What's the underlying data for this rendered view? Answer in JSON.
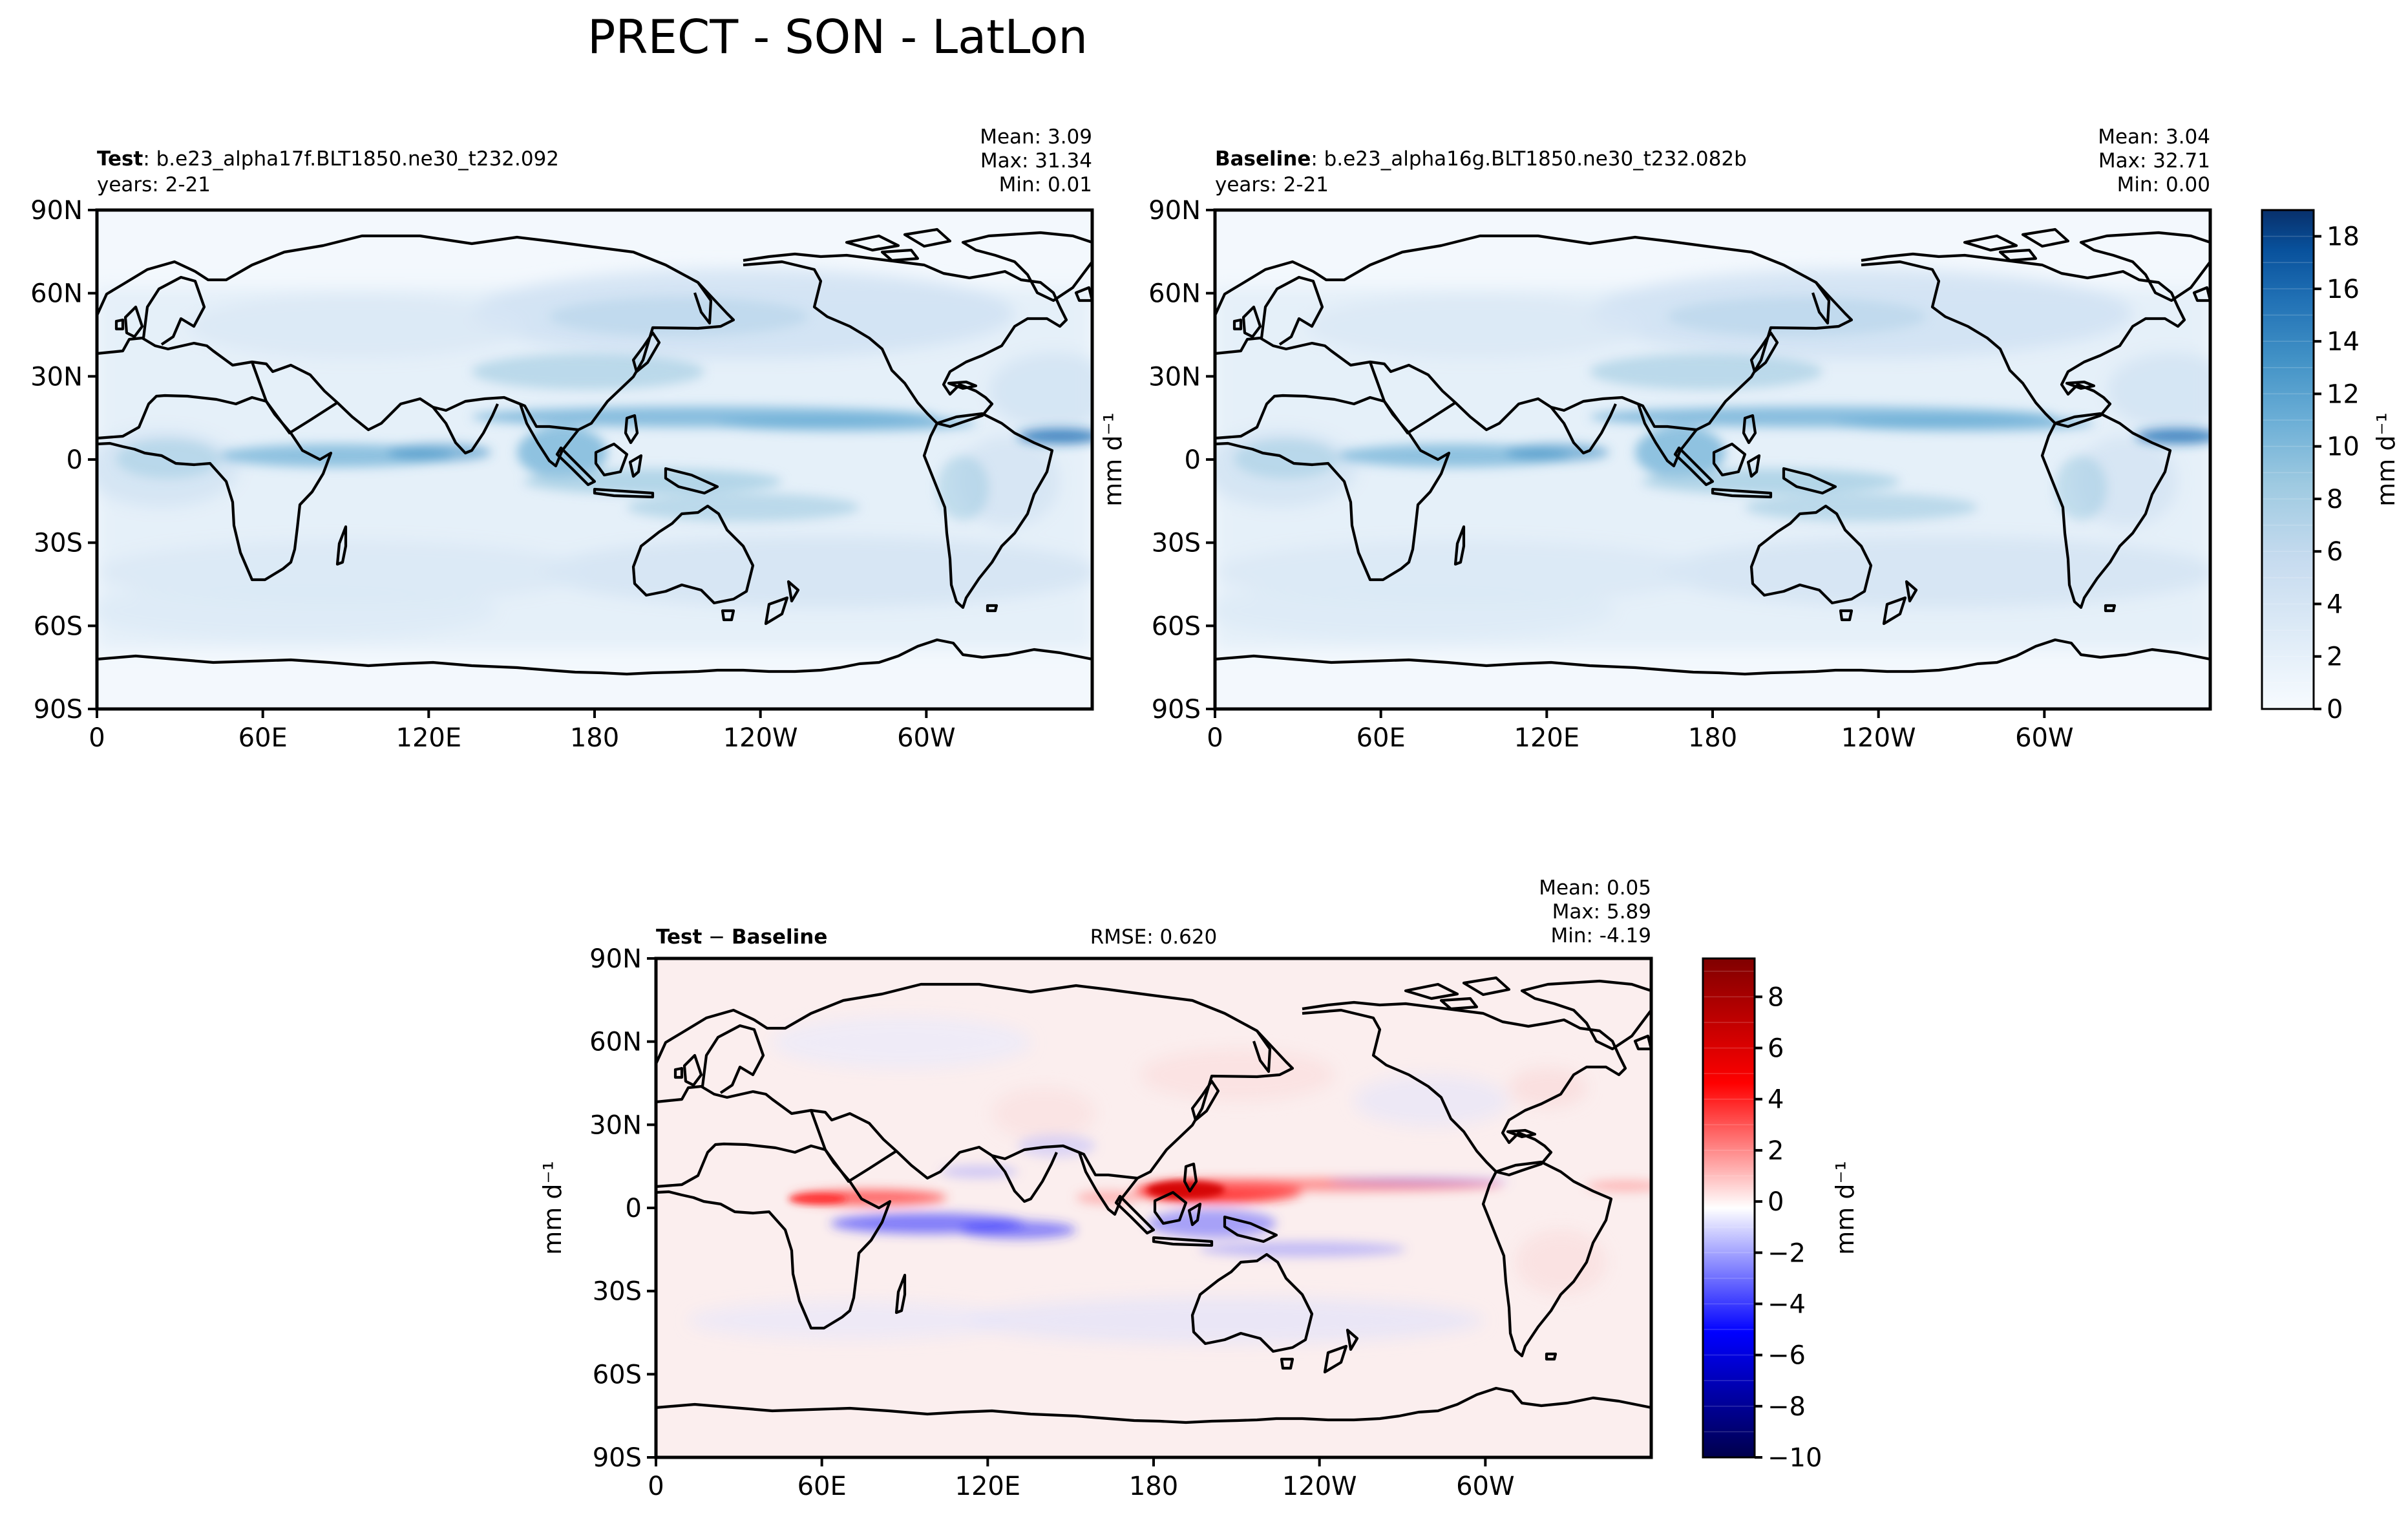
{
  "figure_title": "PRECT - SON - LatLon",
  "chart_data": [
    {
      "type": "heatmap",
      "panel": "test",
      "header": {
        "bold": "Test",
        "rest": ": b.e23_alpha17f.BLT1850.ne30_t232.092",
        "years": "years: 2-21"
      },
      "stats": {
        "mean": "Mean:  3.09",
        "max": "Max: 31.34",
        "min": "Min:  0.01"
      },
      "xticks": [
        "0",
        "60E",
        "120E",
        "180",
        "120W",
        "60W"
      ],
      "yticks": [
        "90N",
        "60N",
        "30N",
        "0",
        "30S",
        "60S",
        "90S"
      ],
      "xlim": [
        0,
        360
      ],
      "ylim": [
        -90,
        90
      ],
      "ylabel": "mm d⁻¹",
      "colormap": "Blues",
      "colors": [
        "#f7fbff",
        "#deebf7",
        "#c6dbef",
        "#9ecae1",
        "#6baed6",
        "#4292c6",
        "#2171b5",
        "#08519c",
        "#08306b"
      ]
    },
    {
      "type": "heatmap",
      "panel": "baseline",
      "header": {
        "bold": "Baseline",
        "rest": ": b.e23_alpha16g.BLT1850.ne30_t232.082b",
        "years": "years: 2-21"
      },
      "stats": {
        "mean": "Mean:  3.04",
        "max": "Max: 32.71",
        "min": "Min:  0.00"
      },
      "xticks": [
        "0",
        "60E",
        "120E",
        "180",
        "120W",
        "60W"
      ],
      "yticks": [
        "90N",
        "60N",
        "30N",
        "0",
        "30S",
        "60S",
        "90S"
      ],
      "xlim": [
        0,
        360
      ],
      "ylim": [
        -90,
        90
      ],
      "colorbar": {
        "label": "mm d⁻¹",
        "ticks": [
          "0",
          "2",
          "4",
          "6",
          "8",
          "10",
          "12",
          "14",
          "16",
          "18"
        ],
        "range": [
          0,
          19
        ]
      }
    },
    {
      "type": "heatmap",
      "panel": "difference",
      "header": {
        "bold1": "Test",
        "minus": " − ",
        "bold2": "Baseline",
        "rmse": "RMSE: 0.620"
      },
      "stats": {
        "mean": "Mean:  0.05",
        "max": "Max:  5.89",
        "min": "Min: -4.19"
      },
      "xticks": [
        "0",
        "60E",
        "120E",
        "180",
        "120W",
        "60W"
      ],
      "yticks": [
        "90N",
        "60N",
        "30N",
        "0",
        "30S",
        "60S",
        "90S"
      ],
      "xlim": [
        0,
        360
      ],
      "ylim": [
        -90,
        90
      ],
      "ylabel": "mm d⁻¹",
      "colormap": "seismic",
      "colorbar": {
        "label": "mm d⁻¹",
        "ticks": [
          "−10",
          "−8",
          "−6",
          "−4",
          "−2",
          "0",
          "2",
          "4",
          "6",
          "8"
        ],
        "range": [
          -10,
          9.5
        ]
      }
    }
  ]
}
